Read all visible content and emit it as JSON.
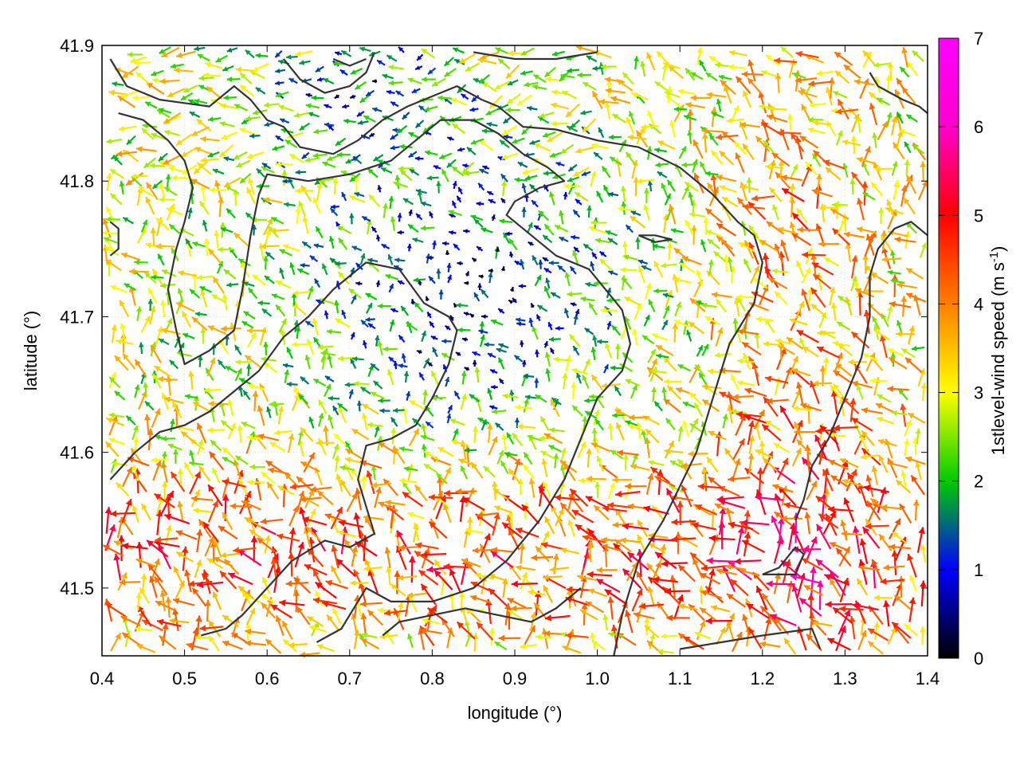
{
  "chart_data": {
    "type": "vector_field",
    "title": "",
    "xlabel": "longitude (°)",
    "ylabel": "latitude (°)",
    "xlim": [
      0.4,
      1.4
    ],
    "ylim": [
      41.45,
      41.9
    ],
    "xticks": [
      "0.4",
      "0.5",
      "0.6",
      "0.7",
      "0.8",
      "0.9",
      "1.0",
      "1.1",
      "1.2",
      "1.3",
      "1.4"
    ],
    "yticks": [
      "41.5",
      "41.6",
      "41.7",
      "41.8",
      "41.9"
    ],
    "grid": true,
    "colorbar": {
      "label": "1stlevel-wind speed (m s",
      "label_sup": "-1",
      "label_end": ")",
      "range": [
        0,
        7
      ],
      "ticks": [
        "0",
        "1",
        "2",
        "3",
        "4",
        "5",
        "6",
        "7"
      ],
      "colormap": [
        "#000000",
        "#0000ff",
        "#00cc00",
        "#ffff00",
        "#ff7f00",
        "#ff0000",
        "#ff00ff"
      ]
    },
    "vectors_note": "dense field of wind arrows; speeds low (blue/green) in central valley, high (orange/red) in south and east",
    "contours": [
      [
        [
          0.41,
          41.89
        ],
        [
          0.43,
          41.87
        ],
        [
          0.47,
          41.86
        ],
        [
          0.53,
          41.855
        ],
        [
          0.56,
          41.87
        ],
        [
          0.58,
          41.86
        ],
        [
          0.6,
          41.845
        ],
        [
          0.62,
          41.84
        ],
        [
          0.64,
          41.825
        ],
        [
          0.68,
          41.82
        ],
        [
          0.71,
          41.83
        ],
        [
          0.74,
          41.845
        ],
        [
          0.77,
          41.855
        ],
        [
          0.83,
          41.87
        ],
        [
          0.86,
          41.86
        ],
        [
          0.88,
          41.855
        ],
        [
          0.91,
          41.84
        ],
        [
          0.95,
          41.838
        ],
        [
          1.0,
          41.83
        ],
        [
          1.05,
          41.825
        ],
        [
          1.1,
          41.81
        ],
        [
          1.14,
          41.79
        ],
        [
          1.17,
          41.77
        ],
        [
          1.19,
          41.76
        ],
        [
          1.2,
          41.74
        ],
        [
          1.19,
          41.71
        ],
        [
          1.16,
          41.68
        ],
        [
          1.14,
          41.64
        ],
        [
          1.12,
          41.6
        ],
        [
          1.08,
          41.55
        ],
        [
          1.05,
          41.52
        ],
        [
          1.03,
          41.48
        ],
        [
          1.02,
          41.45
        ]
      ],
      [
        [
          0.42,
          41.85
        ],
        [
          0.45,
          41.845
        ],
        [
          0.48,
          41.83
        ],
        [
          0.5,
          41.815
        ],
        [
          0.51,
          41.795
        ],
        [
          0.5,
          41.77
        ],
        [
          0.49,
          41.75
        ],
        [
          0.48,
          41.72
        ],
        [
          0.49,
          41.69
        ],
        [
          0.5,
          41.665
        ],
        [
          0.53,
          41.675
        ],
        [
          0.56,
          41.69
        ],
        [
          0.57,
          41.72
        ],
        [
          0.58,
          41.76
        ],
        [
          0.59,
          41.79
        ],
        [
          0.6,
          41.805
        ],
        [
          0.65,
          41.8
        ],
        [
          0.7,
          41.805
        ],
        [
          0.75,
          41.815
        ],
        [
          0.78,
          41.83
        ],
        [
          0.81,
          41.845
        ],
        [
          0.85,
          41.845
        ],
        [
          0.88,
          41.835
        ],
        [
          0.91,
          41.82
        ],
        [
          0.94,
          41.81
        ],
        [
          0.96,
          41.8
        ],
        [
          0.93,
          41.795
        ],
        [
          0.9,
          41.785
        ],
        [
          0.89,
          41.775
        ],
        [
          0.92,
          41.76
        ],
        [
          0.95,
          41.745
        ],
        [
          0.99,
          41.735
        ],
        [
          1.01,
          41.72
        ],
        [
          1.03,
          41.705
        ],
        [
          1.04,
          41.68
        ],
        [
          1.03,
          41.66
        ],
        [
          1.0,
          41.64
        ],
        [
          0.98,
          41.61
        ],
        [
          0.96,
          41.58
        ],
        [
          0.93,
          41.55
        ],
        [
          0.89,
          41.52
        ],
        [
          0.85,
          41.5
        ],
        [
          0.8,
          41.49
        ],
        [
          0.75,
          41.49
        ],
        [
          0.72,
          41.5
        ],
        [
          0.69,
          41.47
        ],
        [
          0.66,
          41.46
        ]
      ],
      [
        [
          0.41,
          41.58
        ],
        [
          0.44,
          41.6
        ],
        [
          0.47,
          41.615
        ],
        [
          0.5,
          41.62
        ],
        [
          0.53,
          41.63
        ],
        [
          0.56,
          41.645
        ],
        [
          0.59,
          41.66
        ],
        [
          0.62,
          41.685
        ],
        [
          0.65,
          41.7
        ],
        [
          0.68,
          41.72
        ],
        [
          0.72,
          41.74
        ],
        [
          0.76,
          41.735
        ],
        [
          0.79,
          41.71
        ],
        [
          0.82,
          41.7
        ],
        [
          0.83,
          41.69
        ],
        [
          0.82,
          41.665
        ],
        [
          0.8,
          41.64
        ],
        [
          0.78,
          41.62
        ],
        [
          0.75,
          41.61
        ],
        [
          0.72,
          41.605
        ],
        [
          0.71,
          41.58
        ],
        [
          0.72,
          41.56
        ],
        [
          0.73,
          41.54
        ],
        [
          0.7,
          41.53
        ],
        [
          0.67,
          41.535
        ],
        [
          0.63,
          41.52
        ],
        [
          0.6,
          41.5
        ],
        [
          0.57,
          41.48
        ],
        [
          0.55,
          41.47
        ],
        [
          0.52,
          41.465
        ]
      ],
      [
        [
          0.74,
          41.465
        ],
        [
          0.76,
          41.475
        ],
        [
          0.8,
          41.48
        ],
        [
          0.84,
          41.485
        ],
        [
          0.88,
          41.48
        ],
        [
          0.92,
          41.475
        ],
        [
          0.95,
          41.485
        ],
        [
          0.98,
          41.5
        ]
      ],
      [
        [
          1.1,
          41.455
        ],
        [
          1.15,
          41.46
        ],
        [
          1.2,
          41.465
        ],
        [
          1.26,
          41.47
        ],
        [
          1.27,
          41.455
        ]
      ],
      [
        [
          1.2,
          41.51
        ],
        [
          1.24,
          41.51
        ],
        [
          1.25,
          41.525
        ],
        [
          1.24,
          41.53
        ],
        [
          1.22,
          41.515
        ],
        [
          1.2,
          41.51
        ]
      ],
      [
        [
          1.4,
          41.76
        ],
        [
          1.38,
          41.77
        ],
        [
          1.36,
          41.765
        ],
        [
          1.34,
          41.75
        ],
        [
          1.33,
          41.73
        ],
        [
          1.33,
          41.7
        ],
        [
          1.32,
          41.67
        ],
        [
          1.3,
          41.64
        ],
        [
          1.28,
          41.61
        ],
        [
          1.26,
          41.59
        ],
        [
          1.25,
          41.565
        ],
        [
          1.24,
          41.55
        ]
      ],
      [
        [
          1.33,
          41.88
        ],
        [
          1.34,
          41.87
        ],
        [
          1.37,
          41.86
        ],
        [
          1.39,
          41.855
        ],
        [
          1.4,
          41.85
        ]
      ],
      [
        [
          0.62,
          41.89
        ],
        [
          0.64,
          41.875
        ],
        [
          0.67,
          41.865
        ],
        [
          0.7,
          41.87
        ],
        [
          0.72,
          41.88
        ],
        [
          0.73,
          41.895
        ]
      ],
      [
        [
          0.68,
          41.89
        ],
        [
          0.7,
          41.885
        ],
        [
          0.72,
          41.89
        ]
      ],
      [
        [
          0.85,
          41.895
        ],
        [
          0.9,
          41.89
        ],
        [
          0.95,
          41.89
        ],
        [
          1.0,
          41.895
        ]
      ],
      [
        [
          1.05,
          41.76
        ],
        [
          1.07,
          41.755
        ],
        [
          1.09,
          41.757
        ],
        [
          1.07,
          41.76
        ],
        [
          1.05,
          41.76
        ]
      ],
      [
        [
          0.41,
          41.77
        ],
        [
          0.42,
          41.765
        ],
        [
          0.42,
          41.75
        ],
        [
          0.41,
          41.745
        ]
      ]
    ]
  }
}
